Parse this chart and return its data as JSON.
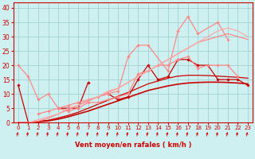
{
  "xlabel": "Vent moyen/en rafales ( km/h )",
  "bg_color": "#cff0f0",
  "grid_color": "#99cccc",
  "xlim": [
    -0.5,
    23.5
  ],
  "ylim": [
    0,
    42
  ],
  "xticks": [
    0,
    1,
    2,
    3,
    4,
    5,
    6,
    7,
    8,
    9,
    10,
    11,
    12,
    13,
    14,
    15,
    16,
    17,
    18,
    19,
    20,
    21,
    22,
    23
  ],
  "yticks": [
    0,
    5,
    10,
    15,
    20,
    25,
    30,
    35,
    40
  ],
  "lines": [
    {
      "x": [
        0,
        1,
        2,
        3,
        4,
        5,
        6,
        7,
        8,
        9,
        10,
        11,
        12,
        13,
        14,
        15,
        16,
        17,
        18,
        19,
        20,
        21,
        22,
        23
      ],
      "y": [
        13,
        0,
        null,
        null,
        5,
        5,
        5,
        14,
        null,
        10,
        8,
        9,
        15,
        20,
        15,
        16,
        22,
        22,
        20,
        20,
        15,
        15,
        15,
        13
      ],
      "color": "#cc0000",
      "lw": 0.9,
      "marker": "D",
      "ms": 1.8,
      "alpha": 1.0
    },
    {
      "x": [
        0,
        1,
        2,
        3,
        4,
        5,
        6,
        7,
        8,
        9,
        10,
        11,
        12,
        13,
        14,
        15,
        16,
        17,
        18,
        19,
        20,
        21,
        22,
        23
      ],
      "y": [
        0,
        0,
        0.3,
        0.6,
        1.2,
        2.0,
        3.0,
        4.0,
        5.2,
        6.4,
        7.6,
        8.8,
        10,
        11.2,
        12,
        12.8,
        13.4,
        13.8,
        14.0,
        14.1,
        14.1,
        14.0,
        13.8,
        13.5
      ],
      "color": "#cc0000",
      "lw": 1.2,
      "marker": null,
      "ms": 0,
      "alpha": 1.0
    },
    {
      "x": [
        0,
        1,
        2,
        3,
        4,
        5,
        6,
        7,
        8,
        9,
        10,
        11,
        12,
        13,
        14,
        15,
        16,
        17,
        18,
        19,
        20,
        21,
        22,
        23
      ],
      "y": [
        0,
        0,
        0.4,
        0.8,
        1.6,
        2.5,
        3.6,
        5.0,
        6.4,
        7.8,
        9.2,
        10.5,
        12,
        13.5,
        14.5,
        15.5,
        16.2,
        16.5,
        16.5,
        16.4,
        16.2,
        16.0,
        15.8,
        15.5
      ],
      "color": "#cc0000",
      "lw": 0.9,
      "marker": null,
      "ms": 0,
      "alpha": 1.0
    },
    {
      "x": [
        0,
        1,
        2,
        3,
        4,
        5,
        6,
        7,
        8,
        9,
        10,
        11,
        12,
        13,
        14,
        15,
        16,
        17,
        18,
        19,
        20,
        21,
        22,
        23
      ],
      "y": [
        20,
        16,
        8,
        10,
        5,
        4,
        5,
        7,
        7,
        8,
        9,
        10,
        17,
        18,
        20,
        20,
        22,
        23,
        19,
        20,
        20,
        20,
        16,
        null
      ],
      "color": "#ff8888",
      "lw": 0.9,
      "marker": "D",
      "ms": 1.8,
      "alpha": 1.0
    },
    {
      "x": [
        2,
        3,
        4,
        5,
        6,
        7,
        8,
        9,
        10,
        11,
        12,
        13,
        15,
        16,
        17,
        18,
        20,
        21
      ],
      "y": [
        3,
        4,
        5,
        6,
        7,
        8,
        9,
        10,
        11,
        23,
        27,
        27,
        18,
        32,
        37,
        31,
        35,
        29
      ],
      "color": "#ff8888",
      "lw": 0.9,
      "marker": "D",
      "ms": 1.8,
      "alpha": 1.0
    },
    {
      "x": [
        0,
        1,
        2,
        3,
        4,
        5,
        6,
        7,
        8,
        9,
        10,
        11,
        12,
        13,
        14,
        15,
        16,
        17,
        18,
        19,
        20,
        21,
        22,
        23
      ],
      "y": [
        0,
        0,
        0.5,
        1.5,
        3,
        4.5,
        6,
        7.5,
        9,
        10.5,
        12,
        14,
        16,
        18,
        20,
        22,
        24,
        26,
        28,
        29,
        30,
        31,
        30,
        29
      ],
      "color": "#ff8888",
      "lw": 0.9,
      "marker": null,
      "ms": 0,
      "alpha": 1.0
    },
    {
      "x": [
        0,
        1,
        2,
        3,
        4,
        5,
        6,
        7,
        8,
        9,
        10,
        11,
        12,
        13,
        14,
        15,
        16,
        17,
        18,
        19,
        20,
        21,
        22,
        23
      ],
      "y": [
        0,
        0,
        1,
        2,
        3,
        5,
        6,
        8,
        9,
        11,
        12,
        14,
        16,
        18,
        20,
        22,
        24,
        26,
        28,
        30,
        32,
        33,
        32,
        30
      ],
      "color": "#ffaaaa",
      "lw": 0.9,
      "marker": null,
      "ms": 0,
      "alpha": 1.0
    }
  ]
}
